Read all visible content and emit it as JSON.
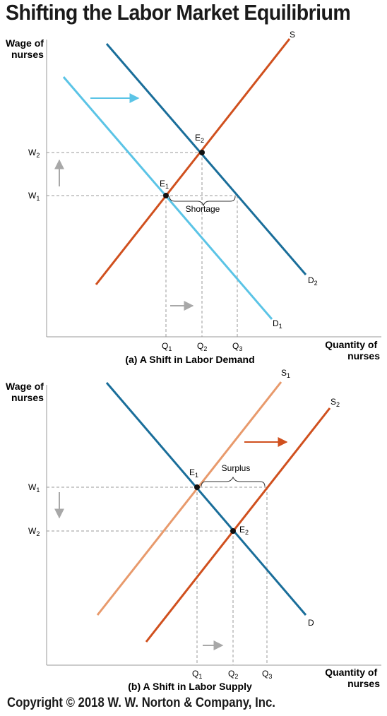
{
  "title": "Shifting the Labor Market Equilibrium",
  "copyright": "Copyright © 2018 W. W. Norton & Company, Inc.",
  "panel_a": {
    "caption": "(a) A Shift in Labor Demand",
    "y_axis_label_line1": "Wage of",
    "y_axis_label_line2": "nurses",
    "x_axis_label_line1": "Quantity of",
    "x_axis_label_line2": "nurses",
    "shortage_label": "Shortage"
  },
  "panel_b": {
    "caption": "(b) A Shift in Labor Supply",
    "y_axis_label_line1": "Wage of",
    "y_axis_label_line2": "nurses",
    "x_axis_label_line1": "Quantity of",
    "x_axis_label_line2": "nurses",
    "surplus_label": "Surplus"
  },
  "colors": {
    "demand_dark": "#1a6e9a",
    "demand_light": "#5bc4e6",
    "supply_dark": "#d0501e",
    "supply_light": "#e89a6c",
    "guide": "#9a9a9a",
    "arrow_gray": "#a8a8a8"
  }
}
